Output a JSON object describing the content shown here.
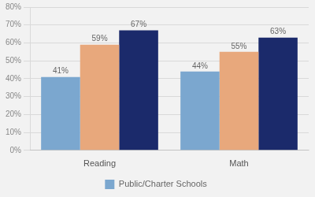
{
  "chart_data": {
    "type": "bar",
    "categories": [
      "Reading",
      "Math"
    ],
    "series": [
      {
        "name": "Public/Charter Schools",
        "color": "#7BA7CF",
        "values": [
          0.41,
          0.44
        ],
        "value_labels": [
          "41%",
          "44%"
        ]
      },
      {
        "color": "#E8A87C",
        "values": [
          0.59,
          0.55
        ],
        "value_labels": [
          "59%",
          "55%"
        ]
      },
      {
        "color": "#1B2A6B",
        "values": [
          0.67,
          0.63
        ],
        "value_labels": [
          "67%",
          "63%"
        ]
      }
    ],
    "ylim": [
      0,
      0.8
    ],
    "yticks": [
      {
        "value": 0.0,
        "label": "0%"
      },
      {
        "value": 0.1,
        "label": "10%"
      },
      {
        "value": 0.2,
        "label": "20%"
      },
      {
        "value": 0.3,
        "label": "30%"
      },
      {
        "value": 0.4,
        "label": "40%"
      },
      {
        "value": 0.5,
        "label": "50%"
      },
      {
        "value": 0.6,
        "label": "60%"
      },
      {
        "value": 0.7,
        "label": "70%"
      },
      {
        "value": 0.8,
        "label": "80%"
      }
    ],
    "grid": true,
    "legend": "bottom",
    "data_labels": true
  }
}
